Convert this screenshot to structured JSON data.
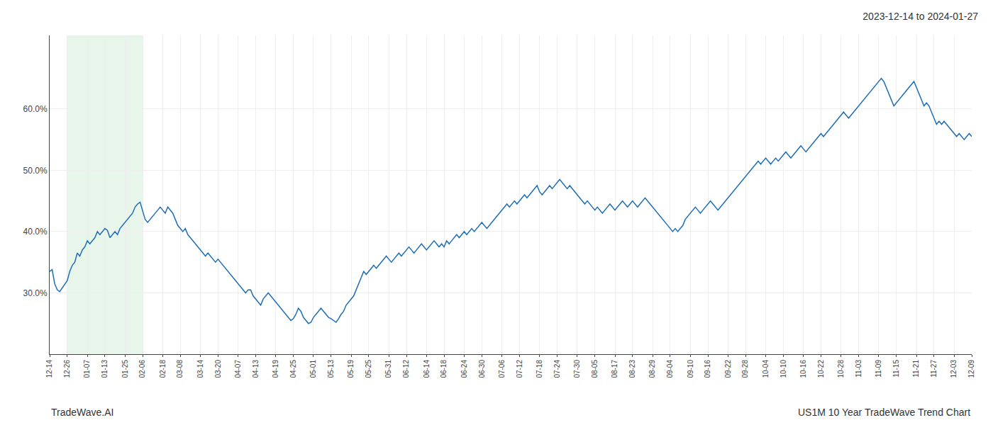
{
  "chart_data": {
    "type": "line",
    "title": "2023-12-14 to 2024-01-27",
    "annotations": [
      "TradeWave.AI",
      "US1M 10 Year TradeWave Trend Chart"
    ],
    "color": "#1f6eb5",
    "shade": {
      "from": "12-26",
      "to": "02-06",
      "color": "#d4edda"
    },
    "grid": true,
    "ylim": [
      20,
      72
    ],
    "yticks": [
      {
        "value": 30,
        "label": "30.0%"
      },
      {
        "value": 40,
        "label": "40.0%"
      },
      {
        "value": 50,
        "label": "50.0%"
      },
      {
        "value": 60,
        "label": "60.0%"
      }
    ],
    "categories": [
      "12-14",
      null,
      null,
      null,
      null,
      null,
      null,
      "12-26",
      null,
      null,
      null,
      null,
      null,
      null,
      null,
      "01-07",
      null,
      null,
      null,
      null,
      null,
      null,
      "01-13",
      null,
      null,
      null,
      null,
      null,
      null,
      null,
      "01-25",
      null,
      null,
      null,
      null,
      null,
      null,
      "02-06",
      null,
      null,
      null,
      null,
      null,
      null,
      null,
      "02-18",
      null,
      null,
      null,
      null,
      null,
      null,
      "03-08",
      null,
      null,
      null,
      null,
      null,
      null,
      null,
      "03-14",
      null,
      null,
      null,
      null,
      null,
      null,
      "03-20",
      null,
      null,
      null,
      null,
      null,
      null,
      null,
      "04-07",
      null,
      null,
      null,
      null,
      null,
      null,
      "04-13",
      null,
      null,
      null,
      null,
      null,
      null,
      null,
      "04-19",
      null,
      null,
      null,
      null,
      null,
      null,
      "04-25",
      null,
      null,
      null,
      null,
      null,
      null,
      null,
      "05-01",
      null,
      null,
      null,
      null,
      null,
      null,
      "05-13",
      null,
      null,
      null,
      null,
      null,
      null,
      null,
      "05-19",
      null,
      null,
      null,
      null,
      null,
      null,
      "05-25",
      null,
      null,
      null,
      null,
      null,
      null,
      null,
      "05-31",
      null,
      null,
      null,
      null,
      null,
      null,
      "06-12",
      null,
      null,
      null,
      null,
      null,
      null,
      null,
      "06-14",
      null,
      null,
      null,
      null,
      null,
      null,
      "06-18",
      null,
      null,
      null,
      null,
      null,
      null,
      null,
      "06-24",
      null,
      null,
      null,
      null,
      null,
      null,
      "06-30",
      null,
      null,
      null,
      null,
      null,
      null,
      null,
      "07-06",
      null,
      null,
      null,
      null,
      null,
      null,
      "07-12",
      null,
      null,
      null,
      null,
      null,
      null,
      null,
      "07-18",
      null,
      null,
      null,
      null,
      null,
      null,
      "07-24",
      null,
      null,
      null,
      null,
      null,
      null,
      null,
      "07-30",
      null,
      null,
      null,
      null,
      null,
      null,
      "08-05",
      null,
      null,
      null,
      null,
      null,
      null,
      null,
      "08-17",
      null,
      null,
      null,
      null,
      null,
      null,
      "08-23",
      null,
      null,
      null,
      null,
      null,
      null,
      null,
      "08-29",
      null,
      null,
      null,
      null,
      null,
      null,
      "09-04",
      null,
      null,
      null,
      null,
      null,
      null,
      null,
      "09-10",
      null,
      null,
      null,
      null,
      null,
      null,
      "09-16",
      null,
      null,
      null,
      null,
      null,
      null,
      null,
      "09-22",
      null,
      null,
      null,
      null,
      null,
      null,
      "09-28",
      null,
      null,
      null,
      null,
      null,
      null,
      null,
      "10-04",
      null,
      null,
      null,
      null,
      null,
      null,
      "10-10",
      null,
      null,
      null,
      null,
      null,
      null,
      null,
      "10-16",
      null,
      null,
      null,
      null,
      null,
      null,
      "10-22",
      null,
      null,
      null,
      null,
      null,
      null,
      null,
      "10-28",
      null,
      null,
      null,
      null,
      null,
      null,
      "11-03",
      null,
      null,
      null,
      null,
      null,
      null,
      null,
      "11-09",
      null,
      null,
      null,
      null,
      null,
      null,
      "11-15",
      null,
      null,
      null,
      null,
      null,
      null,
      null,
      "11-21",
      null,
      null,
      null,
      null,
      null,
      null,
      "11-27",
      null,
      null,
      null,
      null,
      null,
      null,
      null,
      "12-03",
      null,
      null,
      null,
      null,
      null,
      null,
      "12-09"
    ],
    "values": [
      33.5,
      33.8,
      31.5,
      30.5,
      30.2,
      30.8,
      31.5,
      32.0,
      33.5,
      34.5,
      35.0,
      36.5,
      36.0,
      37.0,
      37.5,
      38.5,
      38.0,
      38.5,
      39.0,
      40.0,
      39.5,
      40.0,
      40.5,
      40.2,
      39.0,
      39.5,
      40.0,
      39.5,
      40.5,
      41.0,
      41.5,
      42.0,
      42.5,
      43.0,
      44.0,
      44.5,
      44.8,
      43.5,
      42.0,
      41.5,
      42.0,
      42.5,
      43.0,
      43.5,
      44.0,
      43.5,
      43.0,
      44.0,
      43.5,
      43.0,
      42.0,
      41.0,
      40.5,
      40.0,
      40.5,
      39.5,
      39.0,
      38.5,
      38.0,
      37.5,
      37.0,
      36.5,
      36.0,
      36.5,
      36.0,
      35.5,
      35.0,
      35.5,
      35.0,
      34.5,
      34.0,
      33.5,
      33.0,
      32.5,
      32.0,
      31.5,
      31.0,
      30.5,
      30.0,
      30.5,
      30.5,
      29.5,
      29.0,
      28.5,
      28.0,
      29.0,
      29.5,
      30.0,
      29.5,
      29.0,
      28.5,
      28.0,
      27.5,
      27.0,
      26.5,
      26.0,
      25.5,
      25.8,
      26.5,
      27.5,
      27.0,
      26.0,
      25.5,
      25.0,
      25.2,
      26.0,
      26.5,
      27.0,
      27.5,
      27.0,
      26.5,
      26.0,
      25.8,
      25.5,
      25.2,
      25.8,
      26.5,
      27.0,
      28.0,
      28.5,
      29.0,
      29.5,
      30.5,
      31.5,
      32.5,
      33.5,
      33.0,
      33.5,
      34.0,
      34.5,
      34.0,
      34.5,
      35.0,
      35.5,
      36.0,
      35.5,
      35.0,
      35.5,
      36.0,
      36.5,
      36.0,
      36.5,
      37.0,
      37.5,
      37.0,
      36.5,
      37.0,
      37.5,
      38.0,
      37.5,
      37.0,
      37.5,
      38.0,
      38.5,
      38.0,
      37.5,
      38.0,
      37.5,
      38.5,
      38.0,
      38.5,
      39.0,
      39.5,
      39.0,
      39.5,
      40.0,
      39.5,
      40.0,
      40.5,
      40.0,
      40.5,
      41.0,
      41.5,
      41.0,
      40.5,
      41.0,
      41.5,
      42.0,
      42.5,
      43.0,
      43.5,
      44.0,
      44.5,
      44.0,
      44.5,
      45.0,
      44.5,
      45.0,
      45.5,
      46.0,
      45.5,
      46.0,
      46.5,
      47.0,
      47.5,
      46.5,
      46.0,
      46.5,
      47.0,
      47.5,
      47.0,
      47.5,
      48.0,
      48.5,
      48.0,
      47.5,
      47.0,
      47.5,
      47.0,
      46.5,
      46.0,
      45.5,
      45.0,
      44.5,
      45.0,
      44.5,
      44.0,
      43.5,
      44.0,
      43.5,
      43.0,
      43.5,
      44.0,
      44.5,
      44.0,
      43.5,
      44.0,
      44.5,
      45.0,
      44.5,
      44.0,
      44.5,
      45.0,
      44.5,
      44.0,
      44.5,
      45.0,
      45.5,
      45.0,
      44.5,
      44.0,
      43.5,
      43.0,
      42.5,
      42.0,
      41.5,
      41.0,
      40.5,
      40.0,
      40.5,
      40.0,
      40.5,
      41.0,
      42.0,
      42.5,
      43.0,
      43.5,
      44.0,
      43.5,
      43.0,
      43.5,
      44.0,
      44.5,
      45.0,
      44.5,
      44.0,
      43.5,
      44.0,
      44.5,
      45.0,
      45.5,
      46.0,
      46.5,
      47.0,
      47.5,
      48.0,
      48.5,
      49.0,
      49.5,
      50.0,
      50.5,
      51.0,
      51.5,
      51.0,
      51.5,
      52.0,
      51.5,
      51.0,
      51.5,
      52.0,
      51.5,
      52.0,
      52.5,
      53.0,
      52.5,
      52.0,
      52.5,
      53.0,
      53.5,
      54.0,
      53.5,
      53.0,
      53.5,
      54.0,
      54.5,
      55.0,
      55.5,
      56.0,
      55.5,
      56.0,
      56.5,
      57.0,
      57.5,
      58.0,
      58.5,
      59.0,
      59.5,
      59.0,
      58.5,
      59.0,
      59.5,
      60.0,
      60.5,
      61.0,
      61.5,
      62.0,
      62.5,
      63.0,
      63.5,
      64.0,
      64.5,
      65.0,
      64.5,
      63.5,
      62.5,
      61.5,
      60.5,
      61.0,
      61.5,
      62.0,
      62.5,
      63.0,
      63.5,
      64.0,
      64.5,
      63.5,
      62.5,
      61.5,
      60.5,
      61.0,
      60.5,
      59.5,
      58.5,
      57.5,
      58.0,
      57.5,
      58.0,
      57.5,
      57.0,
      56.5,
      56.0,
      55.5,
      56.0,
      55.5,
      55.0,
      55.5,
      56.0,
      55.5
    ]
  }
}
